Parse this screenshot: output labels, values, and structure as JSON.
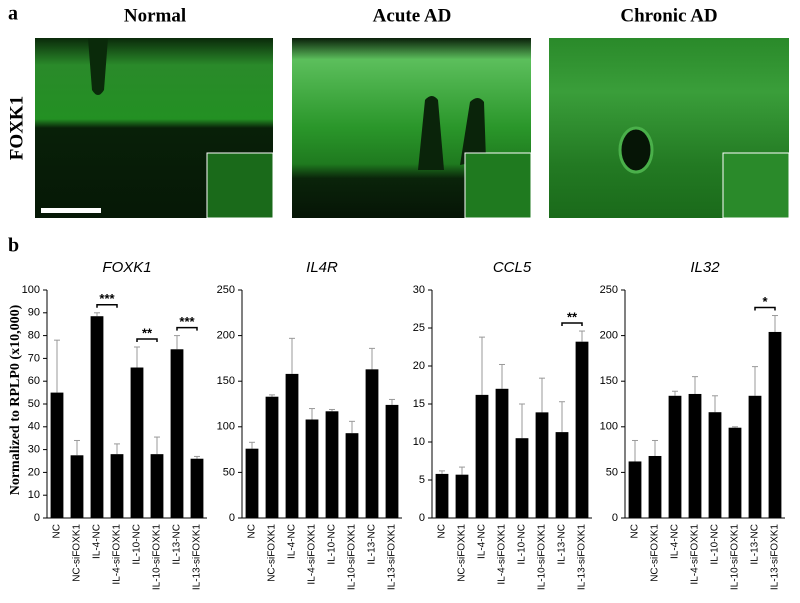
{
  "panel_a": {
    "label": "a",
    "row_label": "FOXK1",
    "titles": [
      "Normal",
      "Acute AD",
      "Chronic AD"
    ]
  },
  "panel_b": {
    "label": "b",
    "ylabel": "Normalized to RPLP0 (x10,000)"
  },
  "chart_data": [
    {
      "type": "bar",
      "title": "FOXK1",
      "color": "#000000",
      "error_color": "#999999",
      "categories": [
        "NC",
        "NC-siFOXK1",
        "IL-4-NC",
        "IL-4-siFOXK1",
        "IL-10-NC",
        "IL-10-siFOXK1",
        "IL-13-NC",
        "IL-13-siFOXK1"
      ],
      "values": [
        55,
        27.5,
        88.5,
        28,
        66,
        28,
        74,
        26
      ],
      "errors": [
        23,
        6.5,
        1.5,
        4.5,
        9,
        7.5,
        6,
        1
      ],
      "ylim": [
        0,
        100
      ],
      "yticks": [
        0,
        10,
        20,
        30,
        40,
        50,
        60,
        70,
        80,
        90,
        100
      ],
      "annotations": [
        {
          "text": "***",
          "start": "IL-4-NC",
          "end": "IL-4-siFOXK1"
        },
        {
          "text": "**",
          "start": "IL-10-NC",
          "end": "IL-10-siFOXK1"
        },
        {
          "text": "***",
          "start": "IL-13-NC",
          "end": "IL-13-siFOXK1"
        }
      ]
    },
    {
      "type": "bar",
      "title": "IL4R",
      "color": "#000000",
      "error_color": "#999999",
      "categories": [
        "NC",
        "NC-siFOXK1",
        "IL-4-NC",
        "IL-4-siFOXK1",
        "IL-10-NC",
        "IL-10-siFOXK1",
        "IL-13-NC",
        "IL-13-siFOXK1"
      ],
      "values": [
        76,
        133,
        158,
        108,
        117,
        93,
        163,
        124
      ],
      "errors": [
        7,
        2,
        39,
        12,
        2,
        13,
        23,
        6
      ],
      "ylim": [
        0,
        250
      ],
      "yticks": [
        0,
        50,
        100,
        150,
        200,
        250
      ],
      "annotations": []
    },
    {
      "type": "bar",
      "title": "CCL5",
      "color": "#000000",
      "error_color": "#999999",
      "categories": [
        "NC",
        "NC-siFOXK1",
        "IL-4-NC",
        "IL-4-siFOXK1",
        "IL-10-NC",
        "IL-10-siFOXK1",
        "IL-13-NC",
        "IL-13-siFOXK1"
      ],
      "values": [
        5.8,
        5.7,
        16.2,
        17,
        10.5,
        13.9,
        11.3,
        23.2
      ],
      "errors": [
        0.4,
        1,
        7.6,
        3.2,
        4.5,
        4.5,
        4,
        1.4
      ],
      "ylim": [
        0,
        30
      ],
      "yticks": [
        0,
        5,
        10,
        15,
        20,
        25,
        30
      ],
      "annotations": [
        {
          "text": "**",
          "start": "IL-13-NC",
          "end": "IL-13-siFOXK1"
        }
      ]
    },
    {
      "type": "bar",
      "title": "IL32",
      "color": "#000000",
      "error_color": "#999999",
      "categories": [
        "NC",
        "NC-siFOXK1",
        "IL-4-NC",
        "IL-4-siFOXK1",
        "IL-10-NC",
        "IL-10-siFOXK1",
        "IL-13-NC",
        "IL-13-siFOXK1"
      ],
      "values": [
        62,
        68,
        134,
        136,
        116,
        99,
        134,
        204
      ],
      "errors": [
        23,
        17,
        5,
        19,
        18,
        1,
        32,
        18
      ],
      "ylim": [
        0,
        250
      ],
      "yticks": [
        0,
        50,
        100,
        150,
        200,
        250
      ],
      "annotations": [
        {
          "text": "*",
          "start": "IL-13-NC",
          "end": "IL-13-siFOXK1"
        }
      ]
    }
  ]
}
